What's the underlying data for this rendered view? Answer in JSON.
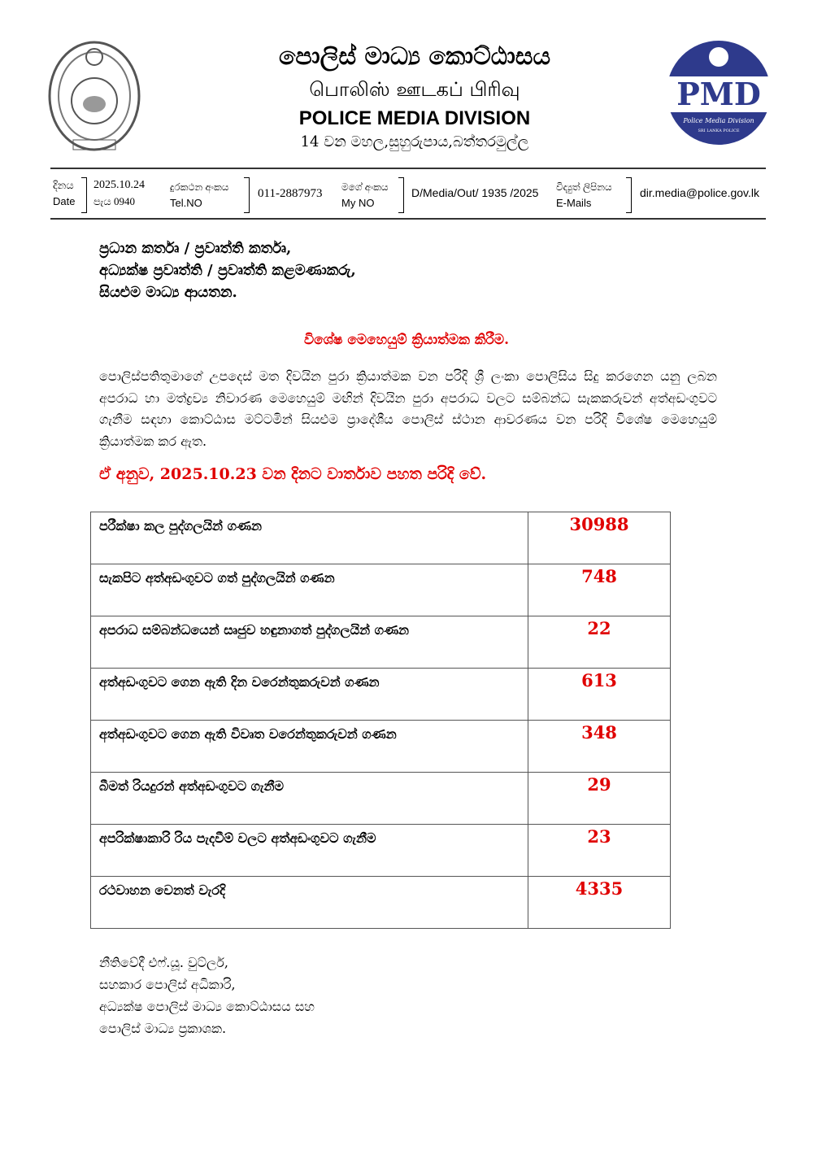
{
  "header": {
    "title_si": "පොලිස් මාධ්‍ය කොට්ඨාසය",
    "title_ta": "பொலிஸ் ஊடகப் பிரிவு",
    "title_en": "POLICE MEDIA DIVISION",
    "address": "14 වන මහල,සුහුරුපාය,බත්තරමුල්ල",
    "pmd_logo_text": "PMD",
    "pmd_logo_sub": "Police Media Division",
    "pmd_logo_sub2": "SRI LANKA POLICE"
  },
  "meta": {
    "date_label_si": "දිනය",
    "date_label_en": "Date",
    "date_value": "2025.10.24",
    "time_value": "පැය 0940",
    "tel_label_si": "දුරකථන අංකය",
    "tel_label_en": "Tel.NO",
    "tel_value": "011-2887973",
    "myno_label_si": "මගේ අංකය",
    "myno_label_en": "My NO",
    "myno_value": "D/Media/Out/ 1935 /2025",
    "email_label_si": "විද්‍යුත් ලිපිනය",
    "email_label_en": "E-Mails",
    "email_value": "dir.media@police.gov.lk"
  },
  "addressees": [
    "ප්‍රධාන කර්තෘ / ප්‍රවෘත්ති කර්තෘ,",
    "අධ්‍යක්ෂ ප්‍රවෘත්ති / ප්‍රවෘත්ති කළමණාකරු,",
    "සියළුම මාධ්‍ය ආයතන."
  ],
  "subject": "විශේෂ මෙහෙයුම් ක්‍රියාත්මක කිරීම.",
  "body": "පොලිස්පතිතුමාගේ උපදෙස් මත දිවයින පුරා ක්‍රියාත්මක වන පරිදි ශ්‍රී ලංකා පොලිසිය සිදු කරගෙන යනු ලබන අපරාධ හා මත්ද්‍රව්‍ය නිවාරණ මෙහෙයුම් මඟින් දිවයින පුරා අපරාධ වලට සම්බන්ධ සැකකරුවන් අත්අඩංගුවට ගැනීම සඳහා කොට්ඨාස මට්ටමින් සියළුම ප්‍රාදේශීය පොලිස් ස්ථාන ආවරණය වන පරිදි විශේෂ මෙහෙයුම් ක්‍රියාත්මක කර ඇත.",
  "report_line": "ඒ අනුව, 2025.10.23 වන දිනට වාර්තාව පහත පරිදි වේ.",
  "table": [
    {
      "label": "පරීක්ෂා කල පුද්ගලයින් ගණන",
      "value": "30988"
    },
    {
      "label": "සැකපිට  අත්අඩංගුවට ගත් පුද්ගලයින් ගණන",
      "value": "748"
    },
    {
      "label": "අපරාධ සම්බන්ධයෙන් සෘජුව හඳුනාගත් පුද්ගලයින් ගණන",
      "value": "22"
    },
    {
      "label": "අත්අඩංගුවට ගෙන ඇති දින  වරෙන්තුකරුවන් ගණන",
      "value": "613"
    },
    {
      "label": "අත්අඩංගුවට ගෙන ඇති විවෘත වරෙන්තුකරුවන් ගණන",
      "value": "348"
    },
    {
      "label": "බීමත් රියදුරන් අත්අඩංගුවට ගැනීම",
      "value": "29"
    },
    {
      "label": "අපරික්ෂාකාරි රිය පැදවීම් වලට අත්අඩංගුවට ගැනීම",
      "value": "23"
    },
    {
      "label": "රථවාහන වෙනත් වැරදි",
      "value": "4335"
    }
  ],
  "signature": [
    "නීතිවේදී එෆ්.යූ. වුට්ලර්,",
    "සහකාර පොලිස් අධිකාරි,",
    "අධ්‍යක්ෂ පොලිස් මාධ්‍ය කොට්ඨාසය සහ",
    "පොලිස් මාධ්‍ය ප්‍රකාශක."
  ],
  "colors": {
    "accent_red": "#e00000",
    "pmd_blue": "#2e3a8c"
  }
}
